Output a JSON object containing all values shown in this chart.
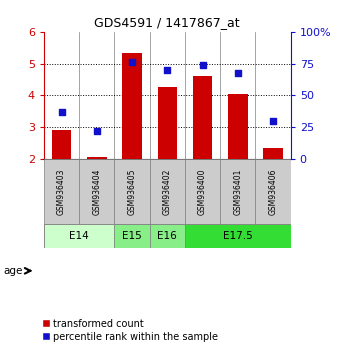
{
  "title": "GDS4591 / 1417867_at",
  "samples": [
    "GSM936403",
    "GSM936404",
    "GSM936405",
    "GSM936402",
    "GSM936400",
    "GSM936401",
    "GSM936406"
  ],
  "bar_values": [
    2.92,
    2.05,
    5.35,
    4.25,
    4.6,
    4.05,
    2.35
  ],
  "percentile_values": [
    37,
    22,
    76,
    70,
    74,
    68,
    30
  ],
  "ylim_left": [
    2,
    6
  ],
  "ylim_right": [
    0,
    100
  ],
  "yticks_left": [
    2,
    3,
    4,
    5,
    6
  ],
  "yticks_right": [
    0,
    25,
    50,
    75,
    100
  ],
  "ytick_labels_right": [
    "0",
    "25",
    "50",
    "75",
    "100%"
  ],
  "bar_color": "#cc0000",
  "dot_color": "#1111cc",
  "bar_bottom": 2.0,
  "age_groups": [
    {
      "label": "E14",
      "span": [
        0,
        1
      ],
      "color": "#ccffcc"
    },
    {
      "label": "E15",
      "span": [
        2,
        2
      ],
      "color": "#88ee88"
    },
    {
      "label": "E16",
      "span": [
        3,
        3
      ],
      "color": "#88ee88"
    },
    {
      "label": "E17.5",
      "span": [
        4,
        6
      ],
      "color": "#33dd33"
    }
  ],
  "left_axis_color": "#cc0000",
  "right_axis_color": "#1111cc",
  "legend_items": [
    "transformed count",
    "percentile rank within the sample"
  ],
  "age_label": "age"
}
